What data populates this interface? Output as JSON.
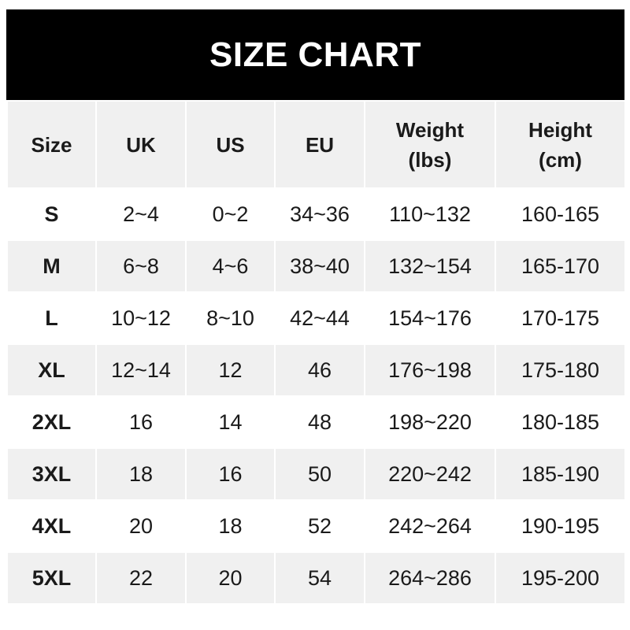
{
  "title": "SIZE CHART",
  "headers": [
    {
      "line1": "Size",
      "line2": ""
    },
    {
      "line1": "UK",
      "line2": ""
    },
    {
      "line1": "US",
      "line2": ""
    },
    {
      "line1": "EU",
      "line2": ""
    },
    {
      "line1": "Weight",
      "line2": "(lbs)"
    },
    {
      "line1": "Height",
      "line2": "(cm)"
    }
  ],
  "rows": [
    [
      "S",
      "2~4",
      "0~2",
      "34~36",
      "110~132",
      "160-165"
    ],
    [
      "M",
      "6~8",
      "4~6",
      "38~40",
      "132~154",
      "165-170"
    ],
    [
      "L",
      "10~12",
      "8~10",
      "42~44",
      "154~176",
      "170-175"
    ],
    [
      "XL",
      "12~14",
      "12",
      "46",
      "176~198",
      "175-180"
    ],
    [
      "2XL",
      "16",
      "14",
      "48",
      "198~220",
      "180-185"
    ],
    [
      "3XL",
      "18",
      "16",
      "50",
      "220~242",
      "185-190"
    ],
    [
      "4XL",
      "20",
      "18",
      "52",
      "242~264",
      "190-195"
    ],
    [
      "5XL",
      "22",
      "20",
      "54",
      "264~286",
      "195-200"
    ]
  ]
}
